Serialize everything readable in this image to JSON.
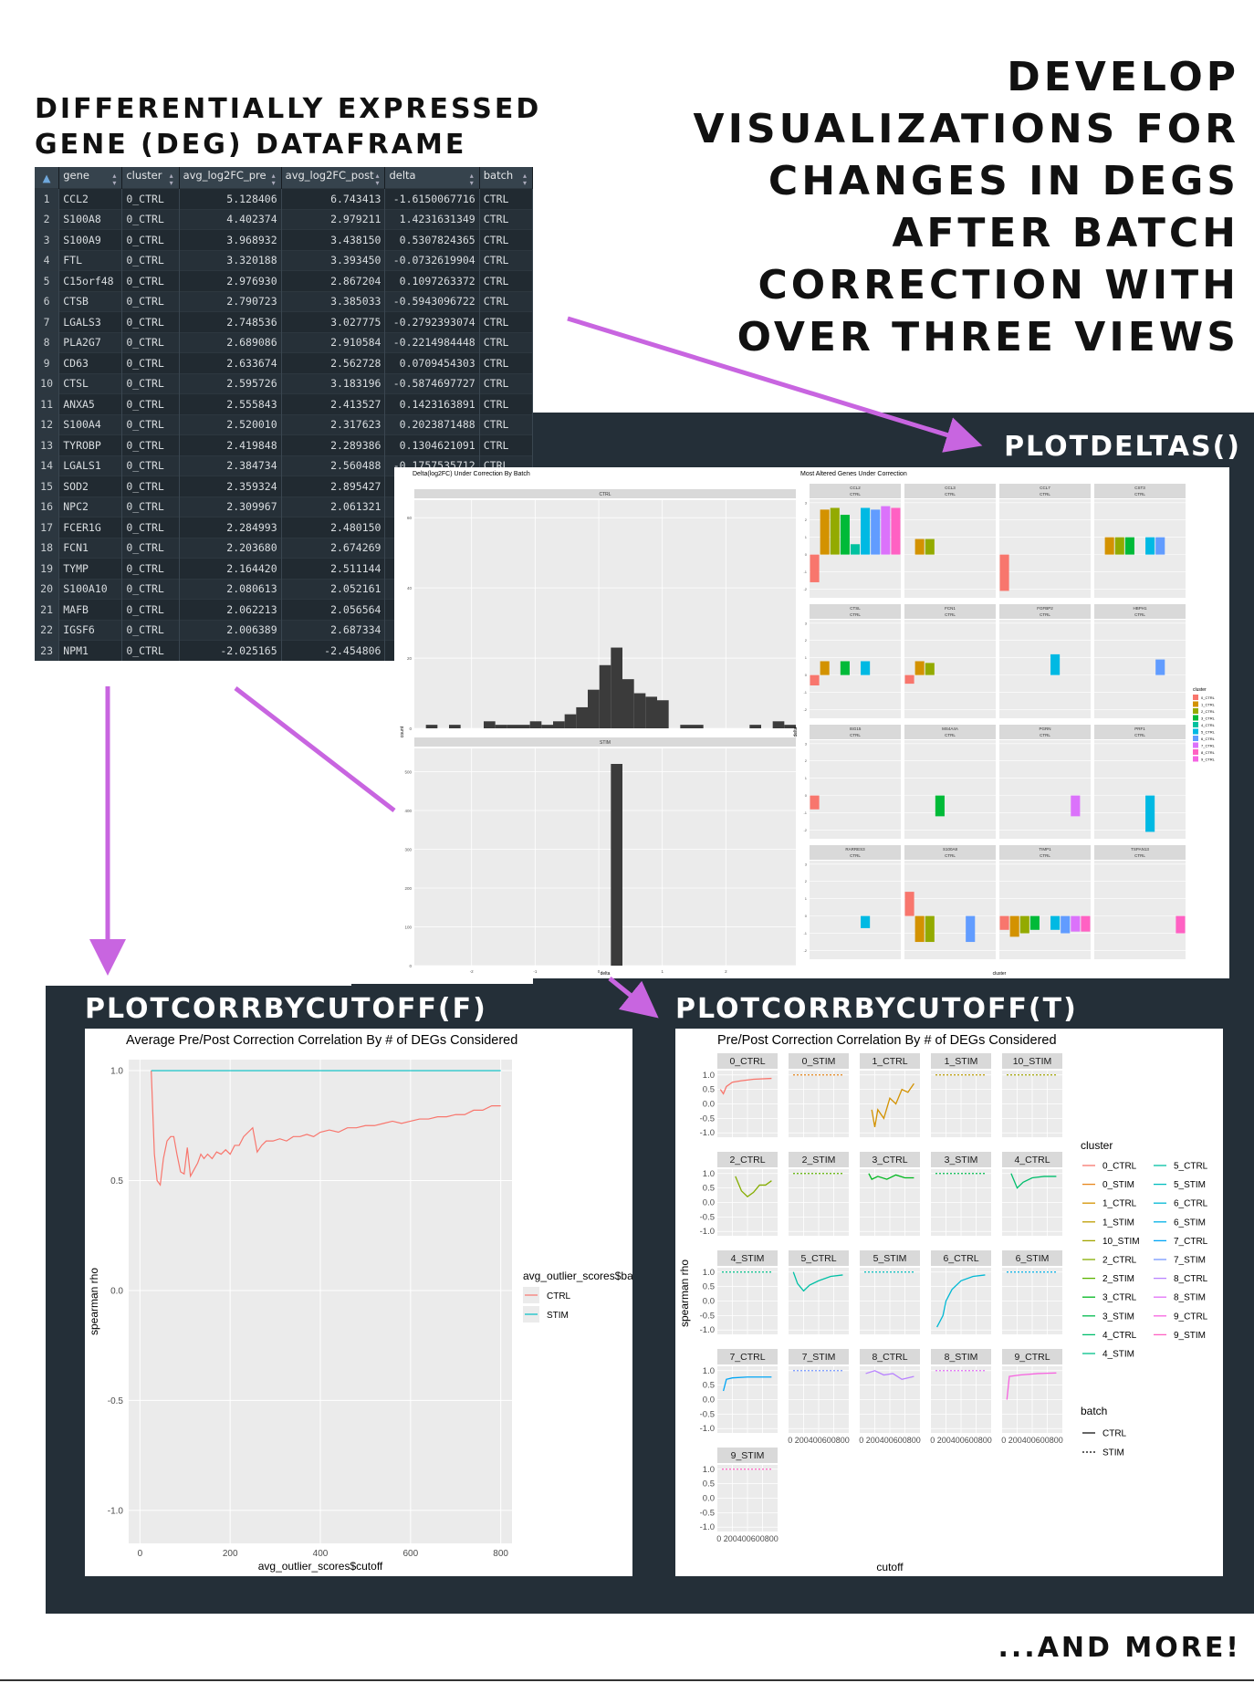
{
  "headings": {
    "left_title_line1": "DIFFERENTIALLY EXPRESSED",
    "left_title_line2": "GENE (DEG) DATAFRAME",
    "right_title_lines": [
      "DEVELOP",
      "VISUALIZATIONS FOR",
      "CHANGES IN DEGS",
      "AFTER BATCH",
      "CORRECTION WITH",
      "OVER THREE VIEWS"
    ],
    "plotdeltas_label": "PLOTDELTAS()",
    "corr_f_label": "PLOTCORRBYCUTOFF(F)",
    "corr_t_label": "PLOTCORRBYCUTOFF(T)",
    "footer": "...AND MORE!"
  },
  "table": {
    "columns": [
      "gene",
      "cluster",
      "avg_log2FC_pre",
      "avg_log2FC_post",
      "delta",
      "batch"
    ],
    "rows": [
      [
        "1",
        "CCL2",
        "0_CTRL",
        "5.128406",
        "6.743413",
        "-1.6150067716",
        "CTRL"
      ],
      [
        "2",
        "S100A8",
        "0_CTRL",
        "4.402374",
        "2.979211",
        "1.4231631349",
        "CTRL"
      ],
      [
        "3",
        "S100A9",
        "0_CTRL",
        "3.968932",
        "3.438150",
        "0.5307824365",
        "CTRL"
      ],
      [
        "4",
        "FTL",
        "0_CTRL",
        "3.320188",
        "3.393450",
        "-0.0732619904",
        "CTRL"
      ],
      [
        "5",
        "C15orf48",
        "0_CTRL",
        "2.976930",
        "2.867204",
        "0.1097263372",
        "CTRL"
      ],
      [
        "6",
        "CTSB",
        "0_CTRL",
        "2.790723",
        "3.385033",
        "-0.5943096722",
        "CTRL"
      ],
      [
        "7",
        "LGALS3",
        "0_CTRL",
        "2.748536",
        "3.027775",
        "-0.2792393074",
        "CTRL"
      ],
      [
        "8",
        "PLA2G7",
        "0_CTRL",
        "2.689086",
        "2.910584",
        "-0.2214984448",
        "CTRL"
      ],
      [
        "9",
        "CD63",
        "0_CTRL",
        "2.633674",
        "2.562728",
        "0.0709454303",
        "CTRL"
      ],
      [
        "10",
        "CTSL",
        "0_CTRL",
        "2.595726",
        "3.183196",
        "-0.5874697727",
        "CTRL"
      ],
      [
        "11",
        "ANXA5",
        "0_CTRL",
        "2.555843",
        "2.413527",
        "0.1423163891",
        "CTRL"
      ],
      [
        "12",
        "S100A4",
        "0_CTRL",
        "2.520010",
        "2.317623",
        "0.2023871488",
        "CTRL"
      ],
      [
        "13",
        "TYROBP",
        "0_CTRL",
        "2.419848",
        "2.289386",
        "0.1304621091",
        "CTRL"
      ],
      [
        "14",
        "LGALS1",
        "0_CTRL",
        "2.384734",
        "2.560488",
        "-0.1757535712",
        "CTRL"
      ],
      [
        "15",
        "SOD2",
        "0_CTRL",
        "2.359324",
        "2.895427",
        "",
        ""
      ],
      [
        "16",
        "NPC2",
        "0_CTRL",
        "2.309967",
        "2.061321",
        "",
        ""
      ],
      [
        "17",
        "FCER1G",
        "0_CTRL",
        "2.284993",
        "2.480150",
        "",
        ""
      ],
      [
        "18",
        "FCN1",
        "0_CTRL",
        "2.203680",
        "2.674269",
        "",
        ""
      ],
      [
        "19",
        "TYMP",
        "0_CTRL",
        "2.164420",
        "2.511144",
        "",
        ""
      ],
      [
        "20",
        "S100A10",
        "0_CTRL",
        "2.080613",
        "2.052161",
        "",
        ""
      ],
      [
        "21",
        "MAFB",
        "0_CTRL",
        "2.062213",
        "2.056564",
        "",
        ""
      ],
      [
        "22",
        "IGSF6",
        "0_CTRL",
        "2.006389",
        "2.687334",
        "",
        ""
      ],
      [
        "23",
        "NPM1",
        "0_CTRL",
        "-2.025165",
        "-2.454806",
        "",
        ""
      ]
    ]
  },
  "colors": {
    "arrow": "#c865e0",
    "dark_panel": "#242f38",
    "ctrl": "#f8766d",
    "stim": "#00bfc4",
    "hist_bar": "#3b3b3b",
    "panel_bg": "#ebebeb",
    "strip_bg": "#d9d9d9"
  },
  "chart_data": [
    {
      "type": "bar",
      "title": "Delta(log2FC) Under Correction By Batch",
      "panels": [
        "CTRL",
        "STIM"
      ],
      "xlabel": "delta",
      "ylabel": "count",
      "ctrl_counts": [
        0,
        1,
        0,
        1,
        0,
        0,
        2,
        1,
        1,
        1,
        2,
        1,
        2,
        4,
        6,
        11,
        18,
        23,
        14,
        10,
        9,
        8,
        0,
        1,
        1,
        0,
        0,
        0,
        0,
        1,
        0,
        2,
        1
      ],
      "ctrl_ylim": [
        0,
        65
      ],
      "ctrl_yticks": [
        "0",
        "20",
        "40",
        "60"
      ],
      "stim_counts": [
        0,
        0,
        0,
        0,
        0,
        0,
        0,
        0,
        0,
        0,
        0,
        0,
        0,
        0,
        0,
        0,
        0,
        520,
        0,
        0,
        0,
        0,
        0,
        0,
        0,
        0,
        0,
        0,
        0,
        0,
        0,
        0,
        0
      ],
      "stim_ylim": [
        0,
        560
      ],
      "stim_yticks": [
        "0",
        "100",
        "200",
        "300",
        "400",
        "500"
      ],
      "xticks": [
        "-2",
        "-1",
        "0",
        "1",
        "2"
      ],
      "xlim": [
        -2.9,
        3.1
      ]
    },
    {
      "type": "bar",
      "title": "Most Altered Genes Under Correction",
      "xlabel": "cluster",
      "ylabel": "delta",
      "legend_title": "cluster",
      "legend_items": [
        "0_CTRL",
        "1_CTRL",
        "2_CTRL",
        "3_CTRL",
        "4_CTRL",
        "5_CTRL",
        "6_CTRL",
        "7_CTRL",
        "8_CTRL",
        "9_CTRL"
      ],
      "legend_colors": [
        "#f8766d",
        "#d39200",
        "#93aa00",
        "#00ba38",
        "#00c19f",
        "#00b9e3",
        "#619cff",
        "#db72fb",
        "#ff61c3",
        "#f564e3"
      ],
      "facets": [
        {
          "gene": "CCL2",
          "batch": "CTRL",
          "values": [
            -1.6,
            2.6,
            2.7,
            2.3,
            0.6,
            2.7,
            2.6,
            2.8,
            2.7
          ]
        },
        {
          "gene": "CCL3",
          "batch": "CTRL",
          "values": [
            null,
            0.9,
            0.9,
            null,
            null,
            null,
            null,
            null,
            null
          ]
        },
        {
          "gene": "CCL7",
          "batch": "CTRL",
          "values": [
            -2.1,
            null,
            null,
            null,
            null,
            null,
            null,
            null,
            null
          ]
        },
        {
          "gene": "CST3",
          "batch": "CTRL",
          "values": [
            null,
            1.0,
            1.0,
            1.0,
            null,
            1.0,
            1.0,
            null,
            null
          ]
        },
        {
          "gene": "CTSL",
          "batch": "CTRL",
          "values": [
            -0.6,
            0.8,
            null,
            0.8,
            null,
            0.8,
            null,
            null,
            null
          ]
        },
        {
          "gene": "FCN1",
          "batch": "CTRL",
          "values": [
            -0.5,
            0.8,
            0.7,
            null,
            null,
            null,
            null,
            null,
            null
          ]
        },
        {
          "gene": "FGFBP2",
          "batch": "CTRL",
          "values": [
            null,
            null,
            null,
            null,
            null,
            1.2,
            null,
            null,
            null
          ]
        },
        {
          "gene": "HBPH1",
          "batch": "CTRL",
          "values": [
            null,
            null,
            null,
            null,
            null,
            null,
            0.9,
            null,
            null
          ]
        },
        {
          "gene": "ISG15",
          "batch": "CTRL",
          "values": [
            -0.8,
            null,
            null,
            null,
            null,
            null,
            null,
            null,
            null
          ]
        },
        {
          "gene": "MS4A4A",
          "batch": "CTRL",
          "values": [
            null,
            null,
            null,
            -1.2,
            null,
            null,
            null,
            null,
            null
          ]
        },
        {
          "gene": "PGRN",
          "batch": "CTRL",
          "values": [
            null,
            null,
            null,
            null,
            null,
            null,
            null,
            -1.2,
            null
          ]
        },
        {
          "gene": "PRF1",
          "batch": "CTRL",
          "values": [
            null,
            null,
            null,
            null,
            null,
            -2.1,
            null,
            null,
            null
          ]
        },
        {
          "gene": "RARRES3",
          "batch": "CTRL",
          "values": [
            null,
            null,
            null,
            null,
            null,
            -0.7,
            null,
            null,
            null
          ]
        },
        {
          "gene": "S100A8",
          "batch": "CTRL",
          "values": [
            1.4,
            -1.5,
            -1.5,
            null,
            null,
            null,
            -1.5,
            null,
            null
          ]
        },
        {
          "gene": "TIMP1",
          "batch": "CTRL",
          "values": [
            -0.8,
            -1.2,
            -1.0,
            -0.8,
            null,
            -0.8,
            -1.0,
            -0.9,
            -0.9
          ]
        },
        {
          "gene": "TSPAN13",
          "batch": "CTRL",
          "values": [
            null,
            null,
            null,
            null,
            null,
            null,
            null,
            null,
            -1.0
          ]
        }
      ]
    },
    {
      "type": "line",
      "title": "Average Pre/Post Correction Correlation By # of DEGs Considered",
      "xlabel": "avg_outlier_scores$cutoff",
      "ylabel": "spearman rho",
      "xlim": [
        -25,
        825
      ],
      "ylim": [
        -1.15,
        1.05
      ],
      "xticks": [
        0,
        200,
        400,
        600,
        800
      ],
      "yticks": [
        -1.0,
        -0.5,
        0.0,
        0.5,
        1.0
      ],
      "legend_title": "avg_outlier_scores$batch",
      "series": [
        {
          "name": "CTRL",
          "x": [
            25,
            32,
            38,
            45,
            52,
            60,
            68,
            75,
            82,
            90,
            98,
            105,
            112,
            120,
            128,
            135,
            142,
            150,
            160,
            170,
            180,
            190,
            200,
            210,
            220,
            230,
            240,
            250,
            260,
            270,
            280,
            295,
            310,
            325,
            340,
            355,
            370,
            385,
            400,
            420,
            440,
            460,
            480,
            500,
            520,
            540,
            560,
            580,
            600,
            620,
            640,
            660,
            680,
            700,
            720,
            740,
            760,
            780,
            800
          ],
          "y": [
            1.0,
            0.62,
            0.5,
            0.48,
            0.6,
            0.68,
            0.7,
            0.7,
            0.62,
            0.54,
            0.53,
            0.65,
            0.52,
            0.55,
            0.58,
            0.62,
            0.6,
            0.62,
            0.6,
            0.63,
            0.62,
            0.64,
            0.62,
            0.66,
            0.66,
            0.7,
            0.72,
            0.74,
            0.63,
            0.66,
            0.68,
            0.68,
            0.69,
            0.68,
            0.7,
            0.7,
            0.71,
            0.7,
            0.72,
            0.73,
            0.72,
            0.74,
            0.74,
            0.75,
            0.75,
            0.76,
            0.77,
            0.76,
            0.77,
            0.78,
            0.78,
            0.79,
            0.79,
            0.8,
            0.8,
            0.82,
            0.82,
            0.84,
            0.84
          ]
        },
        {
          "name": "STIM",
          "x": [
            25,
            800
          ],
          "y": [
            1.0,
            1.0
          ]
        }
      ]
    },
    {
      "type": "line",
      "title": "Pre/Post Correction Correlation By # of DEGs Considered",
      "xlabel": "cutoff",
      "ylabel": "spearman rho",
      "ylim": [
        -1.0,
        1.0
      ],
      "yticks": [
        "1.0",
        "0.5",
        "0.0",
        "-0.5",
        "-1.0"
      ],
      "xtick_text": "0 200400600800",
      "facets": [
        "0_CTRL",
        "0_STIM",
        "1_CTRL",
        "1_STIM",
        "10_STIM",
        "2_CTRL",
        "2_STIM",
        "3_CTRL",
        "3_STIM",
        "4_CTRL",
        "4_STIM",
        "5_CTRL",
        "5_STIM",
        "6_CTRL",
        "6_STIM",
        "7_CTRL",
        "7_STIM",
        "8_CTRL",
        "8_STIM",
        "9_CTRL",
        "9_STIM"
      ],
      "legend_cluster_title": "cluster",
      "legend_cluster_col1": [
        "0_CTRL",
        "0_STIM",
        "1_CTRL",
        "1_STIM",
        "10_STIM",
        "2_CTRL",
        "2_STIM",
        "3_CTRL",
        "3_STIM",
        "4_CTRL",
        "4_STIM"
      ],
      "legend_cluster_col2": [
        "5_CTRL",
        "5_STIM",
        "6_CTRL",
        "6_STIM",
        "7_CTRL",
        "7_STIM",
        "8_CTRL",
        "8_STIM",
        "9_CTRL",
        "9_STIM"
      ],
      "legend_batch_title": "batch",
      "legend_batch": [
        "CTRL",
        "STIM"
      ]
    }
  ]
}
